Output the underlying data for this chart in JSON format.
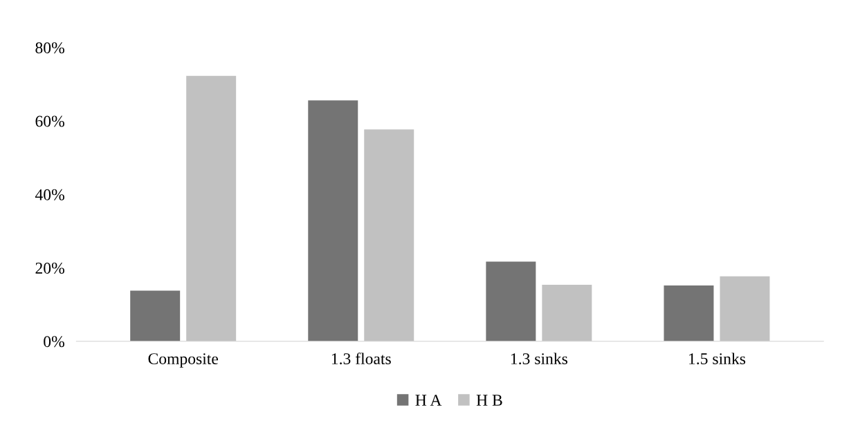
{
  "chart_data": {
    "type": "bar",
    "categories": [
      "Composite",
      "1.3 floats",
      "1.3 sinks",
      "1.5 sinks"
    ],
    "series": [
      {
        "name": "H A",
        "color": "#747474",
        "values": [
          13.8,
          65.6,
          21.7,
          15.2
        ]
      },
      {
        "name": "H B",
        "color": "#c1c1c1",
        "values": [
          72.3,
          57.7,
          15.4,
          17.7
        ]
      }
    ],
    "ylim": [
      0,
      80
    ],
    "yticks": [
      {
        "value": 0,
        "label": "0%"
      },
      {
        "value": 20,
        "label": "20%"
      },
      {
        "value": 40,
        "label": "40%"
      },
      {
        "value": 60,
        "label": "60%"
      },
      {
        "value": 80,
        "label": "80%"
      }
    ],
    "grid": false,
    "legend": "bottom"
  }
}
